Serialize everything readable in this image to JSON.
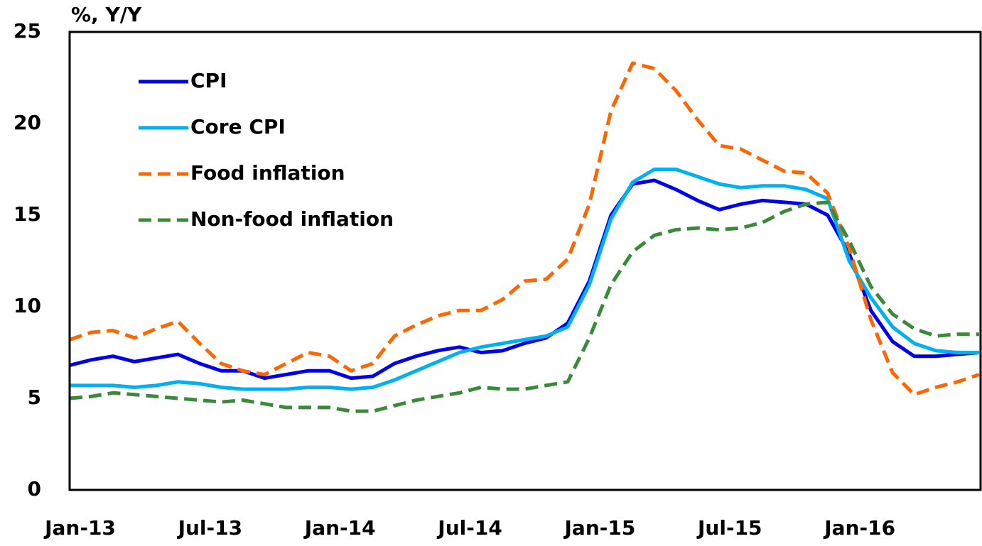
{
  "chart_data": {
    "type": "line",
    "y_label": "%, Y/Y",
    "categories": [
      "Jan-13",
      null,
      null,
      null,
      null,
      null,
      "Jul-13",
      null,
      null,
      null,
      null,
      null,
      "Jan-14",
      null,
      null,
      null,
      null,
      null,
      "Jul-14",
      null,
      null,
      null,
      null,
      null,
      "Jan-15",
      null,
      null,
      null,
      null,
      null,
      "Jul-15",
      null,
      null,
      null,
      null,
      null,
      "Jan-16",
      null,
      null,
      null,
      null,
      null,
      null
    ],
    "series": [
      {
        "name": "CPI",
        "color": "#0000ee",
        "dashed": false,
        "values": [
          6.8,
          7.1,
          7.3,
          7.0,
          7.2,
          7.4,
          6.9,
          6.5,
          6.5,
          6.1,
          6.3,
          6.5,
          6.5,
          6.1,
          6.2,
          6.9,
          7.3,
          7.6,
          7.8,
          7.5,
          7.6,
          8.0,
          8.3,
          9.1,
          11.4,
          15.0,
          16.7,
          16.9,
          16.4,
          15.8,
          15.3,
          15.6,
          15.8,
          15.7,
          15.6,
          15.0,
          12.9,
          9.8,
          8.1,
          7.3,
          7.3,
          7.4,
          7.5
        ]
      },
      {
        "name": "Core CPI",
        "color": "#00b0f0",
        "dashed": false,
        "values": [
          5.7,
          5.7,
          5.7,
          5.6,
          5.7,
          5.9,
          5.8,
          5.6,
          5.5,
          5.5,
          5.5,
          5.6,
          5.6,
          5.5,
          5.6,
          6.0,
          6.5,
          7.0,
          7.5,
          7.8,
          8.0,
          8.2,
          8.4,
          8.9,
          11.2,
          14.8,
          16.8,
          17.5,
          17.5,
          17.1,
          16.7,
          16.5,
          16.6,
          16.6,
          16.4,
          15.9,
          12.5,
          10.5,
          8.9,
          8.0,
          7.6,
          7.5,
          7.5
        ]
      },
      {
        "name": "Food inflation",
        "color": "#ff6600",
        "dashed": true,
        "values": [
          8.2,
          8.6,
          8.7,
          8.3,
          8.8,
          9.2,
          8.0,
          6.9,
          6.5,
          6.3,
          6.9,
          7.5,
          7.3,
          6.5,
          6.9,
          8.4,
          9.0,
          9.5,
          9.8,
          9.8,
          10.4,
          11.4,
          11.5,
          12.6,
          15.6,
          20.7,
          23.3,
          23.0,
          21.8,
          20.2,
          18.8,
          18.6,
          18.0,
          17.4,
          17.3,
          16.2,
          13.2,
          9.3,
          6.4,
          5.2,
          5.6,
          5.9,
          6.3
        ]
      },
      {
        "name": "Non-food inflation",
        "color": "#3a8a3a",
        "dashed": true,
        "values": [
          5.0,
          5.1,
          5.3,
          5.2,
          5.1,
          5.0,
          4.9,
          4.8,
          4.9,
          4.7,
          4.5,
          4.5,
          4.5,
          4.3,
          4.3,
          4.6,
          4.9,
          5.1,
          5.3,
          5.6,
          5.5,
          5.5,
          5.7,
          5.9,
          8.3,
          11.2,
          13.0,
          13.9,
          14.2,
          14.3,
          14.2,
          14.3,
          14.6,
          15.2,
          15.6,
          15.7,
          13.6,
          11.1,
          9.6,
          8.8,
          8.4,
          8.5,
          8.5
        ]
      }
    ],
    "ylim": [
      0,
      25
    ],
    "yticks": [
      0,
      5,
      10,
      15,
      20,
      25
    ],
    "grid": false,
    "legend": "upper left"
  }
}
